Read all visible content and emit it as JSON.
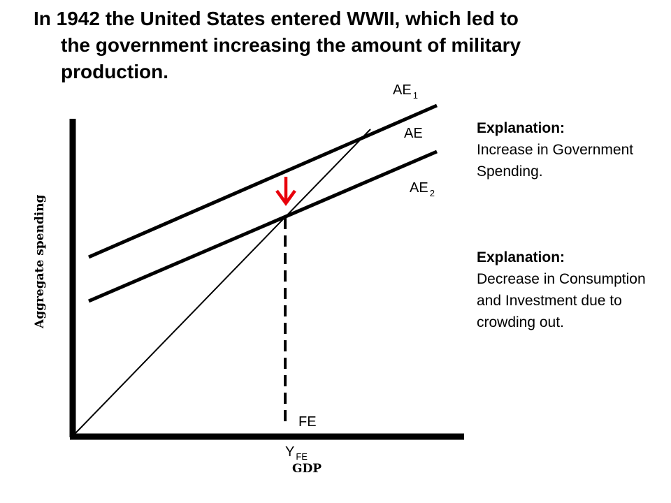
{
  "slide": {
    "title_line_1": "In 1942 the United States entered WWII, which led to",
    "title_line_2": "the government increasing the amount of military",
    "title_line_3": "production."
  },
  "diagram": {
    "curve_labels": {
      "ae1_main": "AE",
      "ae1_sub": "1",
      "ae": "AE",
      "ae2_main": "AE",
      "ae2_sub": "2",
      "fe": "FE",
      "yfe_main": "Y",
      "yfe_sub": "FE"
    },
    "x_axis_title": "GDP",
    "y_axis_title": "Aggregate spending",
    "arrow_color": "#e8000b",
    "line_color": "#000000"
  },
  "explanations": [
    {
      "heading": "Explanation:",
      "body": "Increase in Government Spending."
    },
    {
      "heading": "Explanation:",
      "body": "Decrease in Consumption and Investment due to crowding out."
    }
  ]
}
